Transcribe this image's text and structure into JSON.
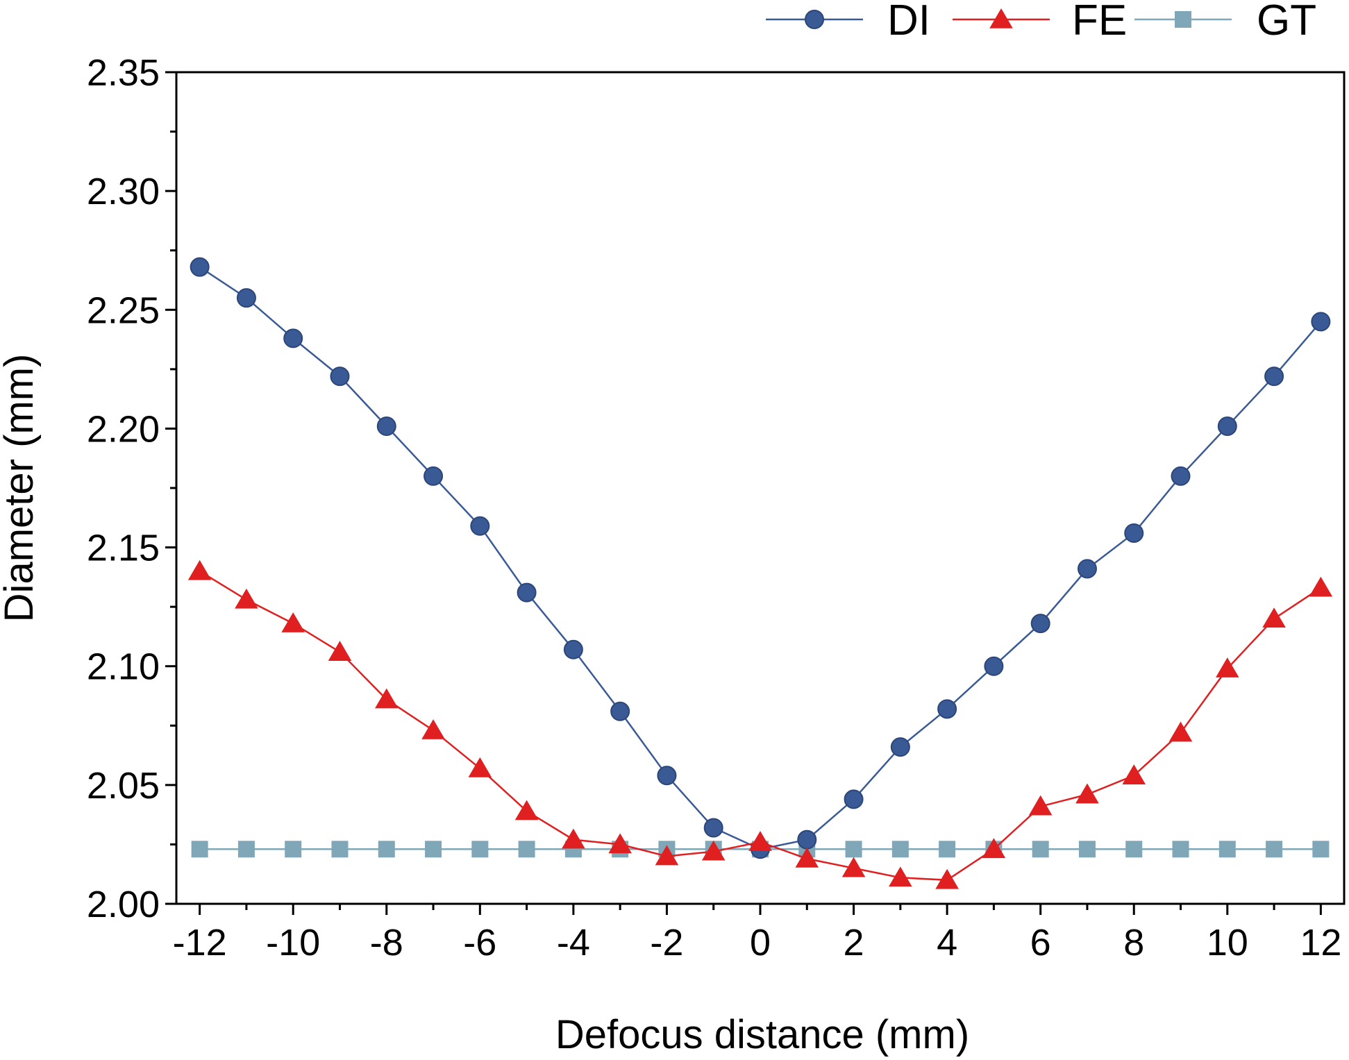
{
  "chart_data": {
    "type": "line",
    "title": "",
    "xlabel": "Defocus distance (mm)",
    "ylabel": "Diameter (mm)",
    "xlim": [
      -12.5,
      12.5
    ],
    "ylim": [
      2.0,
      2.35
    ],
    "x_ticks": [
      -12,
      -10,
      -8,
      -6,
      -4,
      -2,
      0,
      2,
      4,
      6,
      8,
      10,
      12
    ],
    "x_tick_labels": [
      "-12",
      "-10",
      "-8",
      "-6",
      "-4",
      "-2",
      "0",
      "2",
      "4",
      "6",
      "8",
      "10",
      "12"
    ],
    "y_ticks": [
      2.0,
      2.05,
      2.1,
      2.15,
      2.2,
      2.25,
      2.3,
      2.35
    ],
    "y_tick_labels": [
      "2.00",
      "2.05",
      "2.10",
      "2.15",
      "2.20",
      "2.25",
      "2.30",
      "2.35"
    ],
    "grid": false,
    "legend_position": "top-right, above plot",
    "x": [
      -12,
      -11,
      -10,
      -9,
      -8,
      -7,
      -6,
      -5,
      -4,
      -3,
      -2,
      -1,
      0,
      1,
      2,
      3,
      4,
      5,
      6,
      7,
      8,
      9,
      10,
      11,
      12
    ],
    "series": [
      {
        "name": "DI",
        "marker": "circle",
        "color": "#3a5a96",
        "values": [
          2.268,
          2.255,
          2.238,
          2.222,
          2.201,
          2.18,
          2.159,
          2.131,
          2.107,
          2.081,
          2.054,
          2.032,
          2.023,
          2.027,
          2.044,
          2.066,
          2.082,
          2.1,
          2.118,
          2.141,
          2.156,
          2.18,
          2.201,
          2.222,
          2.245
        ]
      },
      {
        "name": "FE",
        "marker": "triangle",
        "color": "#e02020",
        "values": [
          2.14,
          2.128,
          2.118,
          2.106,
          2.086,
          2.073,
          2.057,
          2.039,
          2.027,
          2.025,
          2.02,
          2.022,
          2.026,
          2.019,
          2.015,
          2.011,
          2.01,
          2.023,
          2.041,
          2.046,
          2.054,
          2.072,
          2.099,
          2.12,
          2.133
        ]
      },
      {
        "name": "GT",
        "marker": "square",
        "color": "#7fa7b7",
        "values": [
          2.023,
          2.023,
          2.023,
          2.023,
          2.023,
          2.023,
          2.023,
          2.023,
          2.023,
          2.023,
          2.023,
          2.023,
          2.023,
          2.023,
          2.023,
          2.023,
          2.023,
          2.023,
          2.023,
          2.023,
          2.023,
          2.023,
          2.023,
          2.023,
          2.023
        ]
      }
    ]
  }
}
